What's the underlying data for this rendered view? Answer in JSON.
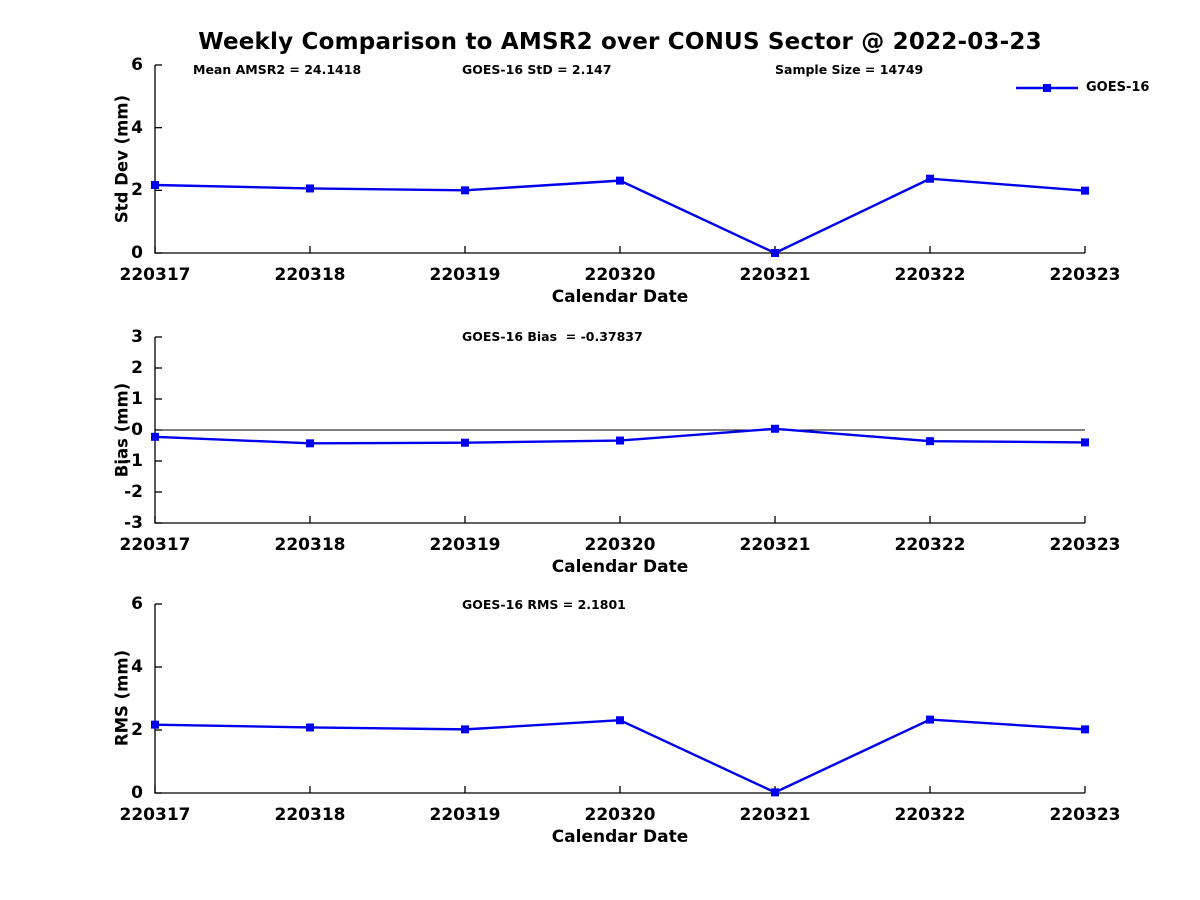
{
  "title": "Weekly Comparison to AMSR2 over CONUS Sector @ 2022-03-23",
  "colors": {
    "series": "#0000EE",
    "axis": "#000000",
    "zero_line": "#000000",
    "text": "#000000",
    "background": "#ffffff"
  },
  "legend": {
    "label": "GOES-16",
    "position": "top-right",
    "marker": "filled-square"
  },
  "categories": [
    "220317",
    "220318",
    "220319",
    "220320",
    "220321",
    "220322",
    "220323"
  ],
  "chart_data": [
    {
      "type": "line",
      "name": "std-dev-plot",
      "ylabel": "Std Dev (mm)",
      "xlabel": "Calendar Date",
      "ylim": [
        0,
        6
      ],
      "yticks": [
        0,
        2,
        4,
        6
      ],
      "grid": false,
      "zero_line": false,
      "categories": [
        "220317",
        "220318",
        "220319",
        "220320",
        "220321",
        "220322",
        "220323"
      ],
      "series": [
        {
          "name": "GOES-16",
          "values": [
            2.17,
            2.06,
            2.0,
            2.31,
            0.0,
            2.37,
            1.99
          ]
        }
      ],
      "annotations": [
        "Mean AMSR2 = 24.1418",
        "GOES-16 StD = 2.147",
        "Sample Size = 14749"
      ],
      "legend_entries": [
        "GOES-16"
      ]
    },
    {
      "type": "line",
      "name": "bias-plot",
      "ylabel": "Bias (mm)",
      "xlabel": "Calendar Date",
      "ylim": [
        -3,
        3
      ],
      "yticks": [
        3,
        2,
        1,
        0,
        -1,
        -2,
        -3
      ],
      "grid": false,
      "zero_line": true,
      "categories": [
        "220317",
        "220318",
        "220319",
        "220320",
        "220321",
        "220322",
        "220323"
      ],
      "series": [
        {
          "name": "GOES-16",
          "values": [
            -0.22,
            -0.43,
            -0.41,
            -0.34,
            0.04,
            -0.36,
            -0.4
          ]
        }
      ],
      "annotations": [
        "GOES-16 Bias  = -0.37837"
      ],
      "legend_entries": []
    },
    {
      "type": "line",
      "name": "rms-plot",
      "ylabel": "RMS (mm)",
      "xlabel": "Calendar Date",
      "ylim": [
        0,
        6
      ],
      "yticks": [
        0,
        2,
        4,
        6
      ],
      "grid": false,
      "zero_line": false,
      "categories": [
        "220317",
        "220318",
        "220319",
        "220320",
        "220321",
        "220322",
        "220323"
      ],
      "series": [
        {
          "name": "GOES-16",
          "values": [
            2.17,
            2.08,
            2.02,
            2.31,
            0.02,
            2.33,
            2.02
          ]
        }
      ],
      "annotations": [
        "GOES-16 RMS = 2.1801"
      ],
      "legend_entries": []
    }
  ]
}
